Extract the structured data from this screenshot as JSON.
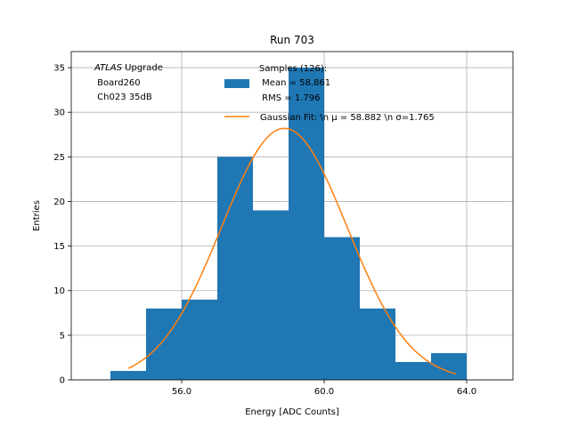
{
  "chart_data": {
    "type": "bar",
    "title": "Run 703",
    "xlabel": "Energy [ADC Counts]",
    "ylabel": "Entries",
    "xlim": [
      52.9,
      65.3
    ],
    "ylim": [
      0,
      36.8
    ],
    "xticks": [
      56.0,
      60.0,
      64.0
    ],
    "xtick_labels": [
      "56.0",
      "60.0",
      "64.0"
    ],
    "yticks": [
      0,
      5,
      10,
      15,
      20,
      25,
      30,
      35
    ],
    "ytick_labels": [
      "0",
      "5",
      "10",
      "15",
      "20",
      "25",
      "30",
      "35"
    ],
    "grid": true,
    "bin_edges": [
      54,
      55,
      56,
      57,
      58,
      59,
      60,
      61,
      62,
      63,
      64
    ],
    "counts": [
      1,
      8,
      9,
      25,
      19,
      35,
      16,
      8,
      2,
      3
    ],
    "bar_color": "#1f77b4",
    "fit_color": "#ff7f0e",
    "fit": {
      "mu": 58.882,
      "sigma": 1.765,
      "amplitude": 28.2,
      "x_range": [
        54.5,
        63.7
      ]
    },
    "legend": {
      "position": "top-right",
      "entries": [
        {
          "kind": "patch",
          "lines": [
            "Samples (126):",
            " Mean = 58.861",
            " RMS = 1.796"
          ]
        },
        {
          "kind": "line",
          "text": "Gaussian Fit: \\n μ = 58.882 \\n σ=1.765"
        }
      ]
    },
    "annotation": {
      "lines": [
        {
          "italic": "ATLAS",
          "rest": " Upgrade"
        },
        {
          "italic": "",
          "rest": " Board260"
        },
        {
          "italic": "",
          "rest": " Ch023 35dB"
        }
      ]
    }
  }
}
